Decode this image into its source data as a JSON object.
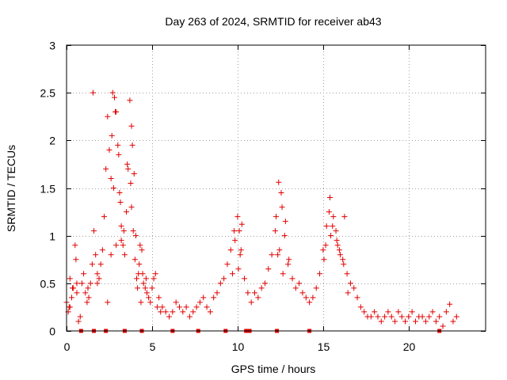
{
  "chart_data": {
    "type": "scatter",
    "title": "Day 263 of 2024, SRMTID for receiver ab43",
    "xlabel": "GPS time / hours",
    "ylabel": "SRMTID / TECUs",
    "xlim": [
      0,
      24.5
    ],
    "ylim": [
      0,
      3
    ],
    "xticks": [
      0,
      5,
      10,
      15,
      20
    ],
    "xtick_labels": [
      "0",
      "5",
      "10",
      "15",
      "20"
    ],
    "yticks": [
      0,
      0.5,
      1,
      1.5,
      2,
      2.5,
      3
    ],
    "ytick_labels": [
      "0",
      "0.5",
      "1",
      "1.5",
      "2",
      "2.5",
      "3"
    ],
    "grid": true,
    "marker": "+",
    "color": "#e00000",
    "series": [
      {
        "name": "ab43",
        "x": [
          0.0,
          0.1,
          0.2,
          0.3,
          0.4,
          0.5,
          0.6,
          0.7,
          0.8,
          1.0,
          1.1,
          1.2,
          1.3,
          1.4,
          1.5,
          1.6,
          1.7,
          1.8,
          1.9,
          2.0,
          2.1,
          2.2,
          2.3,
          2.4,
          2.5,
          2.6,
          2.7,
          2.8,
          2.9,
          3.0,
          3.1,
          3.2,
          3.3,
          3.4,
          3.5,
          3.6,
          3.7,
          3.8,
          3.9,
          4.0,
          4.1,
          4.2,
          4.3,
          4.4,
          4.5,
          4.6,
          4.7,
          4.8,
          4.9,
          5.0,
          5.1,
          5.2,
          5.3,
          5.4,
          5.5,
          5.6,
          5.8,
          6.0,
          6.2,
          6.4,
          6.6,
          6.8,
          7.0,
          7.2,
          7.4,
          7.6,
          7.8,
          8.0,
          8.2,
          8.4,
          8.6,
          8.8,
          9.0,
          9.2,
          9.4,
          9.6,
          9.8,
          10.0,
          10.2,
          10.4,
          10.6,
          10.8,
          11.0,
          11.2,
          11.4,
          11.6,
          11.8,
          12.0,
          12.2,
          12.4,
          12.6,
          12.8,
          13.0,
          13.2,
          13.4,
          13.6,
          13.8,
          14.0,
          14.2,
          14.4,
          14.6,
          14.8,
          15.0,
          15.2,
          15.4,
          15.6,
          15.8,
          16.0,
          16.2,
          16.4,
          16.6,
          16.8,
          17.0,
          17.2,
          17.4,
          17.6,
          17.8,
          18.0,
          18.2,
          18.4,
          18.6,
          18.8,
          19.0,
          19.2,
          19.4,
          19.6,
          19.8,
          20.0,
          20.2,
          20.4,
          20.6,
          20.8,
          21.0,
          21.2,
          21.4,
          21.6,
          21.8,
          22.0,
          22.2,
          22.4,
          22.6,
          22.8,
          0.15,
          0.35,
          0.55,
          0.9,
          1.25,
          1.55,
          2.65,
          2.75,
          2.85,
          3.05,
          3.15,
          3.35,
          3.55,
          3.75,
          3.85,
          3.95,
          4.05,
          4.25,
          4.45,
          4.65,
          9.85,
          10.05,
          10.15,
          10.25,
          12.25,
          12.45,
          12.55,
          12.75,
          12.95,
          15.15,
          15.35,
          15.55,
          15.75,
          15.95,
          16.15,
          16.45,
          0.2,
          0.6,
          1.8,
          2.4,
          2.6,
          2.9,
          3.2,
          3.8,
          4.15,
          4.35,
          9.7,
          10.1,
          12.35,
          12.65,
          15.05,
          15.45,
          15.85,
          16.25
        ],
        "y": [
          0.3,
          0.2,
          0.25,
          0.35,
          0.45,
          0.9,
          0.5,
          0.1,
          0.15,
          0.6,
          0.4,
          0.3,
          0.35,
          0.5,
          0.7,
          1.05,
          0.8,
          0.6,
          0.55,
          0.7,
          0.85,
          1.2,
          1.7,
          2.25,
          1.9,
          1.6,
          2.5,
          2.45,
          2.3,
          1.95,
          1.45,
          1.1,
          0.9,
          0.8,
          1.25,
          1.7,
          2.42,
          1.3,
          1.05,
          0.75,
          0.55,
          0.6,
          0.9,
          0.85,
          0.5,
          0.45,
          0.4,
          0.35,
          0.3,
          0.45,
          0.55,
          0.6,
          0.25,
          0.35,
          0.2,
          0.25,
          0.2,
          0.15,
          0.2,
          0.3,
          0.25,
          0.2,
          0.25,
          0.15,
          0.2,
          0.25,
          0.3,
          0.35,
          0.25,
          0.2,
          0.35,
          0.4,
          0.5,
          0.55,
          0.7,
          0.85,
          1.05,
          1.2,
          0.85,
          0.55,
          0.4,
          0.3,
          0.4,
          0.35,
          0.45,
          0.5,
          0.65,
          0.8,
          1.05,
          1.56,
          1.3,
          1.15,
          0.75,
          0.55,
          0.45,
          0.5,
          0.4,
          0.35,
          0.3,
          0.35,
          0.45,
          0.6,
          0.85,
          1.1,
          1.4,
          1.2,
          0.95,
          0.8,
          0.7,
          0.6,
          0.5,
          0.45,
          0.35,
          0.25,
          0.2,
          0.15,
          0.15,
          0.2,
          0.15,
          0.1,
          0.15,
          0.2,
          0.15,
          0.1,
          0.2,
          0.15,
          0.1,
          0.15,
          0.2,
          0.1,
          0.15,
          0.15,
          0.1,
          0.15,
          0.2,
          0.1,
          0.15,
          0.05,
          0.2,
          0.28,
          0.1,
          0.15,
          0.25,
          0.45,
          0.75,
          0.5,
          0.45,
          2.5,
          2.05,
          1.5,
          2.3,
          1.85,
          1.35,
          1.05,
          1.75,
          1.55,
          1.95,
          1.65,
          1.0,
          0.7,
          0.6,
          0.55,
          0.95,
          0.65,
          0.8,
          1.12,
          1.2,
          0.85,
          1.45,
          1.0,
          0.7,
          0.9,
          1.25,
          1.1,
          1.05,
          0.85,
          0.75,
          0.4,
          0.55,
          0.4,
          0.5,
          0.3,
          0.8,
          0.9,
          0.95,
          2.15,
          0.45,
          0.3,
          0.6,
          1.05,
          0.8,
          0.6,
          0.75,
          1.0,
          0.9,
          1.2
        ]
      }
    ],
    "zero_markers_x": [
      0.85,
      1.6,
      2.3,
      3.4,
      4.4,
      6.2,
      7.7,
      9.3,
      10.5,
      10.7,
      12.3,
      14.2,
      21.8
    ]
  }
}
